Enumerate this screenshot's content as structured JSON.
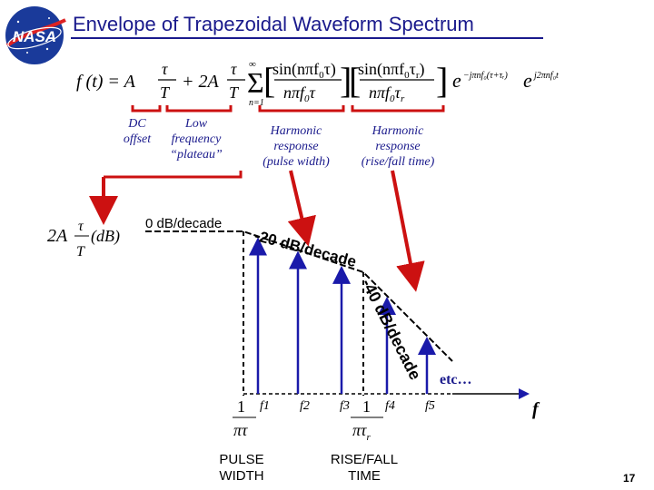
{
  "title": "Envelope of Trapezoidal Waveform Spectrum",
  "logo_text": "NASA",
  "colors": {
    "title": "#1a1a8c",
    "arrow": "#cc1111",
    "bracket": "#cc1111",
    "lines": "#1a1aaa",
    "envelope": "#000000"
  },
  "equation": {
    "lhs": "f (t) =",
    "term1": "A τ / T",
    "term2": "+ 2A τ / T Σ (n=1 to ∞)",
    "factor1": "sin(nπf0τ) / (nπf0τ)",
    "factor2": "sin(nπf0τr) / (nπf0τr)",
    "exponent": "e^(−jπnf0(τ+τr)) e^(j2πnf0t)"
  },
  "labels": {
    "dc_offset": [
      "DC",
      "offset"
    ],
    "low_frequency": [
      "Low",
      "frequency",
      "“plateau”"
    ],
    "harmonic_pulse": [
      "Harmonic",
      "response",
      "(pulse width)"
    ],
    "harmonic_rise": [
      "Harmonic",
      "response",
      "(rise/fall time)"
    ]
  },
  "plot": {
    "y_label": "2A τ / T (dB)",
    "plateau": "0 dB/decade",
    "slope1": "-20 dB/decade",
    "slope2": "-40 dB/decade",
    "etc": "etc…",
    "harmonics": [
      "f1",
      "f2",
      "f3",
      "f4",
      "f5"
    ],
    "corner1": "1 / πτ",
    "corner2": "1 / πτr",
    "x_axis": "f",
    "pulse_width": [
      "PULSE",
      "WIDTH"
    ],
    "rise_fall": [
      "RISE/FALL",
      "TIME"
    ]
  },
  "page_number": "17"
}
